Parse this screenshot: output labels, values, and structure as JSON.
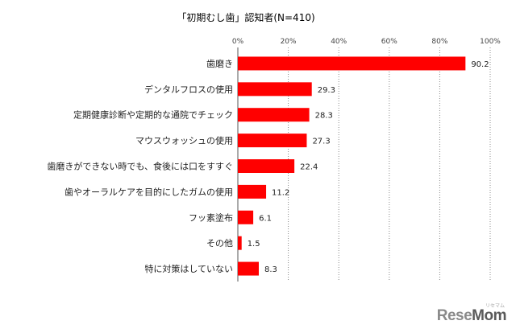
{
  "chart_data": {
    "type": "bar",
    "orientation": "horizontal",
    "title": "「初期むし歯」認知者(N=410)",
    "categories": [
      "歯磨き",
      "デンタルフロスの使用",
      "定期健康診断や定期的な通院でチェック",
      "マウスウォッシュの使用",
      "歯磨きができない時でも、食後には口をすすぐ",
      "歯やオーラルケアを目的にしたガムの使用",
      "フッ素塗布",
      "その他",
      "特に対策はしていない"
    ],
    "values": [
      90.2,
      29.3,
      28.3,
      27.3,
      22.4,
      11.2,
      6.1,
      1.5,
      8.3
    ],
    "value_labels": [
      "90.2",
      "29.3",
      "28.3",
      "27.3",
      "22.4",
      "11.2",
      "6.1",
      "1.5",
      "8.3"
    ],
    "xlim": [
      0,
      100
    ],
    "ticks": [
      0,
      20,
      40,
      60,
      80,
      100
    ],
    "tick_labels": [
      "0%",
      "20%",
      "40%",
      "60%",
      "80%",
      "100%"
    ],
    "bar_color": "#ff0000",
    "grid": true,
    "legend": "none"
  },
  "watermark": {
    "text": "ReseMom",
    "part1": "Rese",
    "part2": "Mom",
    "subtitle": "リセマム"
  }
}
